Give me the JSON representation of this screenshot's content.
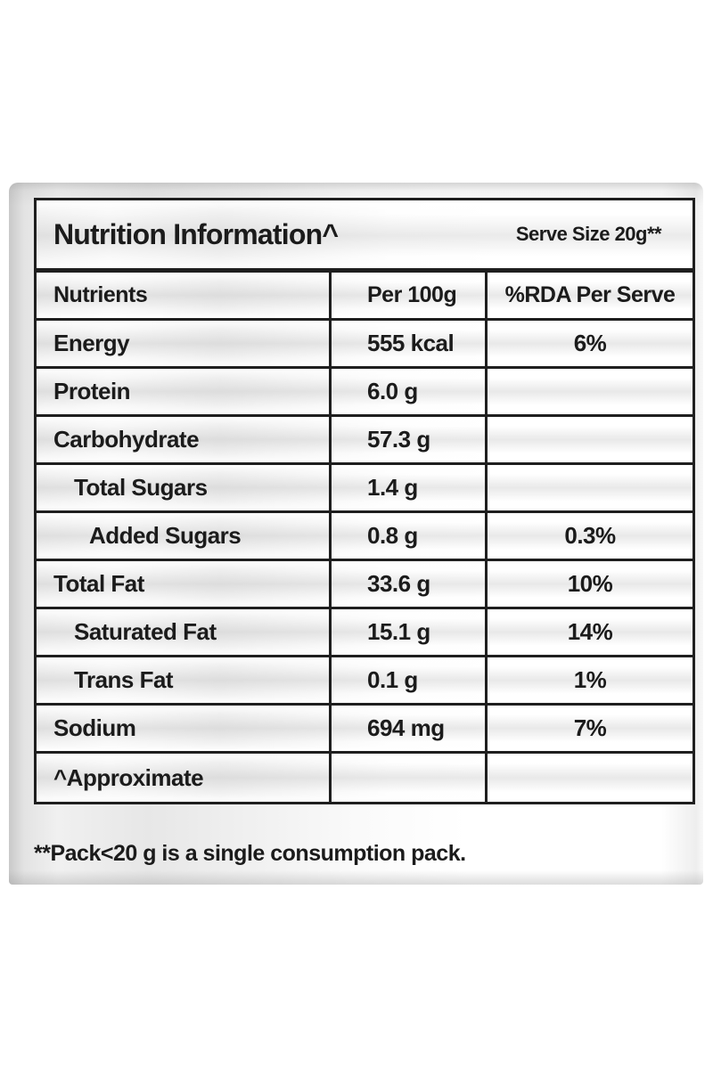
{
  "background_color": "#ffffff",
  "text_color": "#1b1b1b",
  "table": {
    "title": "Nutrition Information^",
    "serve_size": "Serve Size 20g**",
    "columns": [
      "Nutrients",
      "Per 100g",
      "%RDA Per Serve"
    ],
    "rows": [
      {
        "nutrient": "Energy",
        "per_100g": "555 kcal",
        "rda_per_serve": "6%",
        "indent": 0
      },
      {
        "nutrient": "Protein",
        "per_100g": "6.0 g",
        "rda_per_serve": "",
        "indent": 0
      },
      {
        "nutrient": "Carbohydrate",
        "per_100g": "57.3 g",
        "rda_per_serve": "",
        "indent": 0
      },
      {
        "nutrient": "Total Sugars",
        "per_100g": "1.4 g",
        "rda_per_serve": "",
        "indent": 1
      },
      {
        "nutrient": "Added Sugars",
        "per_100g": "0.8 g",
        "rda_per_serve": "0.3%",
        "indent": 2
      },
      {
        "nutrient": "Total Fat",
        "per_100g": "33.6 g",
        "rda_per_serve": "10%",
        "indent": 0
      },
      {
        "nutrient": "Saturated Fat",
        "per_100g": "15.1 g",
        "rda_per_serve": "14%",
        "indent": 1
      },
      {
        "nutrient": "Trans Fat",
        "per_100g": "0.1 g",
        "rda_per_serve": "1%",
        "indent": 1
      },
      {
        "nutrient": "Sodium",
        "per_100g": "694 mg",
        "rda_per_serve": "7%",
        "indent": 0
      },
      {
        "nutrient": "^Approximate",
        "per_100g": "",
        "rda_per_serve": "",
        "indent": 0
      }
    ]
  },
  "footnote": "**Pack<20 g is a single consumption pack."
}
